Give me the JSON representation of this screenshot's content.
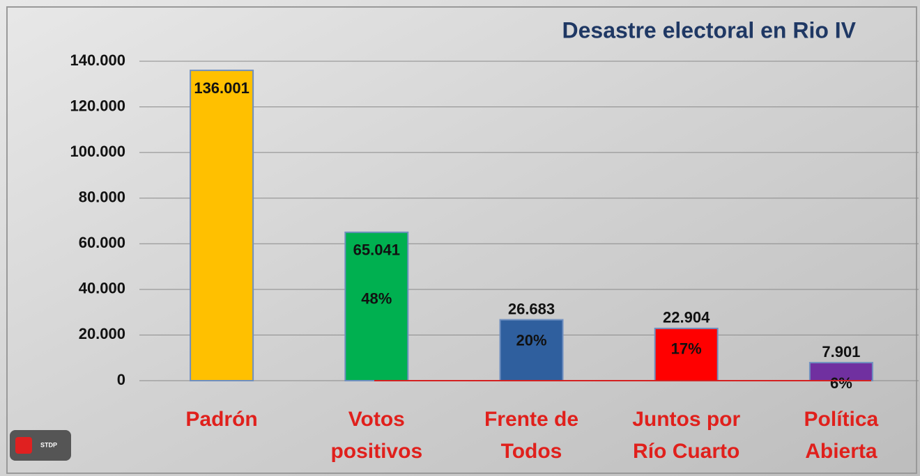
{
  "chart_data": {
    "type": "bar",
    "title": "Desastre electoral en Rio IV",
    "categories": [
      [
        "Padrón"
      ],
      [
        "Votos",
        "positivos"
      ],
      [
        "Frente de",
        "Todos"
      ],
      [
        "Juntos por",
        "Río Cuarto"
      ],
      [
        "Política",
        "Abierta"
      ]
    ],
    "values": [
      136001,
      65041,
      26683,
      22904,
      7901
    ],
    "value_labels": [
      "136.001",
      "65.041",
      "26.683",
      "22.904",
      "7.901"
    ],
    "percent_labels": [
      null,
      "48%",
      "20%",
      "17%",
      "6%"
    ],
    "colors": [
      "#ffc000",
      "#00b050",
      "#2f5f9e",
      "#ff0000",
      "#7030a0"
    ],
    "ylim": [
      0,
      140000
    ],
    "yticks": [
      0,
      {
        "value": 20000,
        "label": "20.000"
      },
      {
        "value": 40000,
        "label": "40.000"
      },
      {
        "value": 60000,
        "label": "60.000"
      },
      {
        "value": 80000,
        "label": "80.000"
      },
      {
        "value": 100000,
        "label": "100.000"
      },
      {
        "value": 120000,
        "label": "120.000"
      },
      {
        "value": 140000,
        "label": "140.000"
      }
    ],
    "grid": true,
    "logo_text": "STDP"
  }
}
